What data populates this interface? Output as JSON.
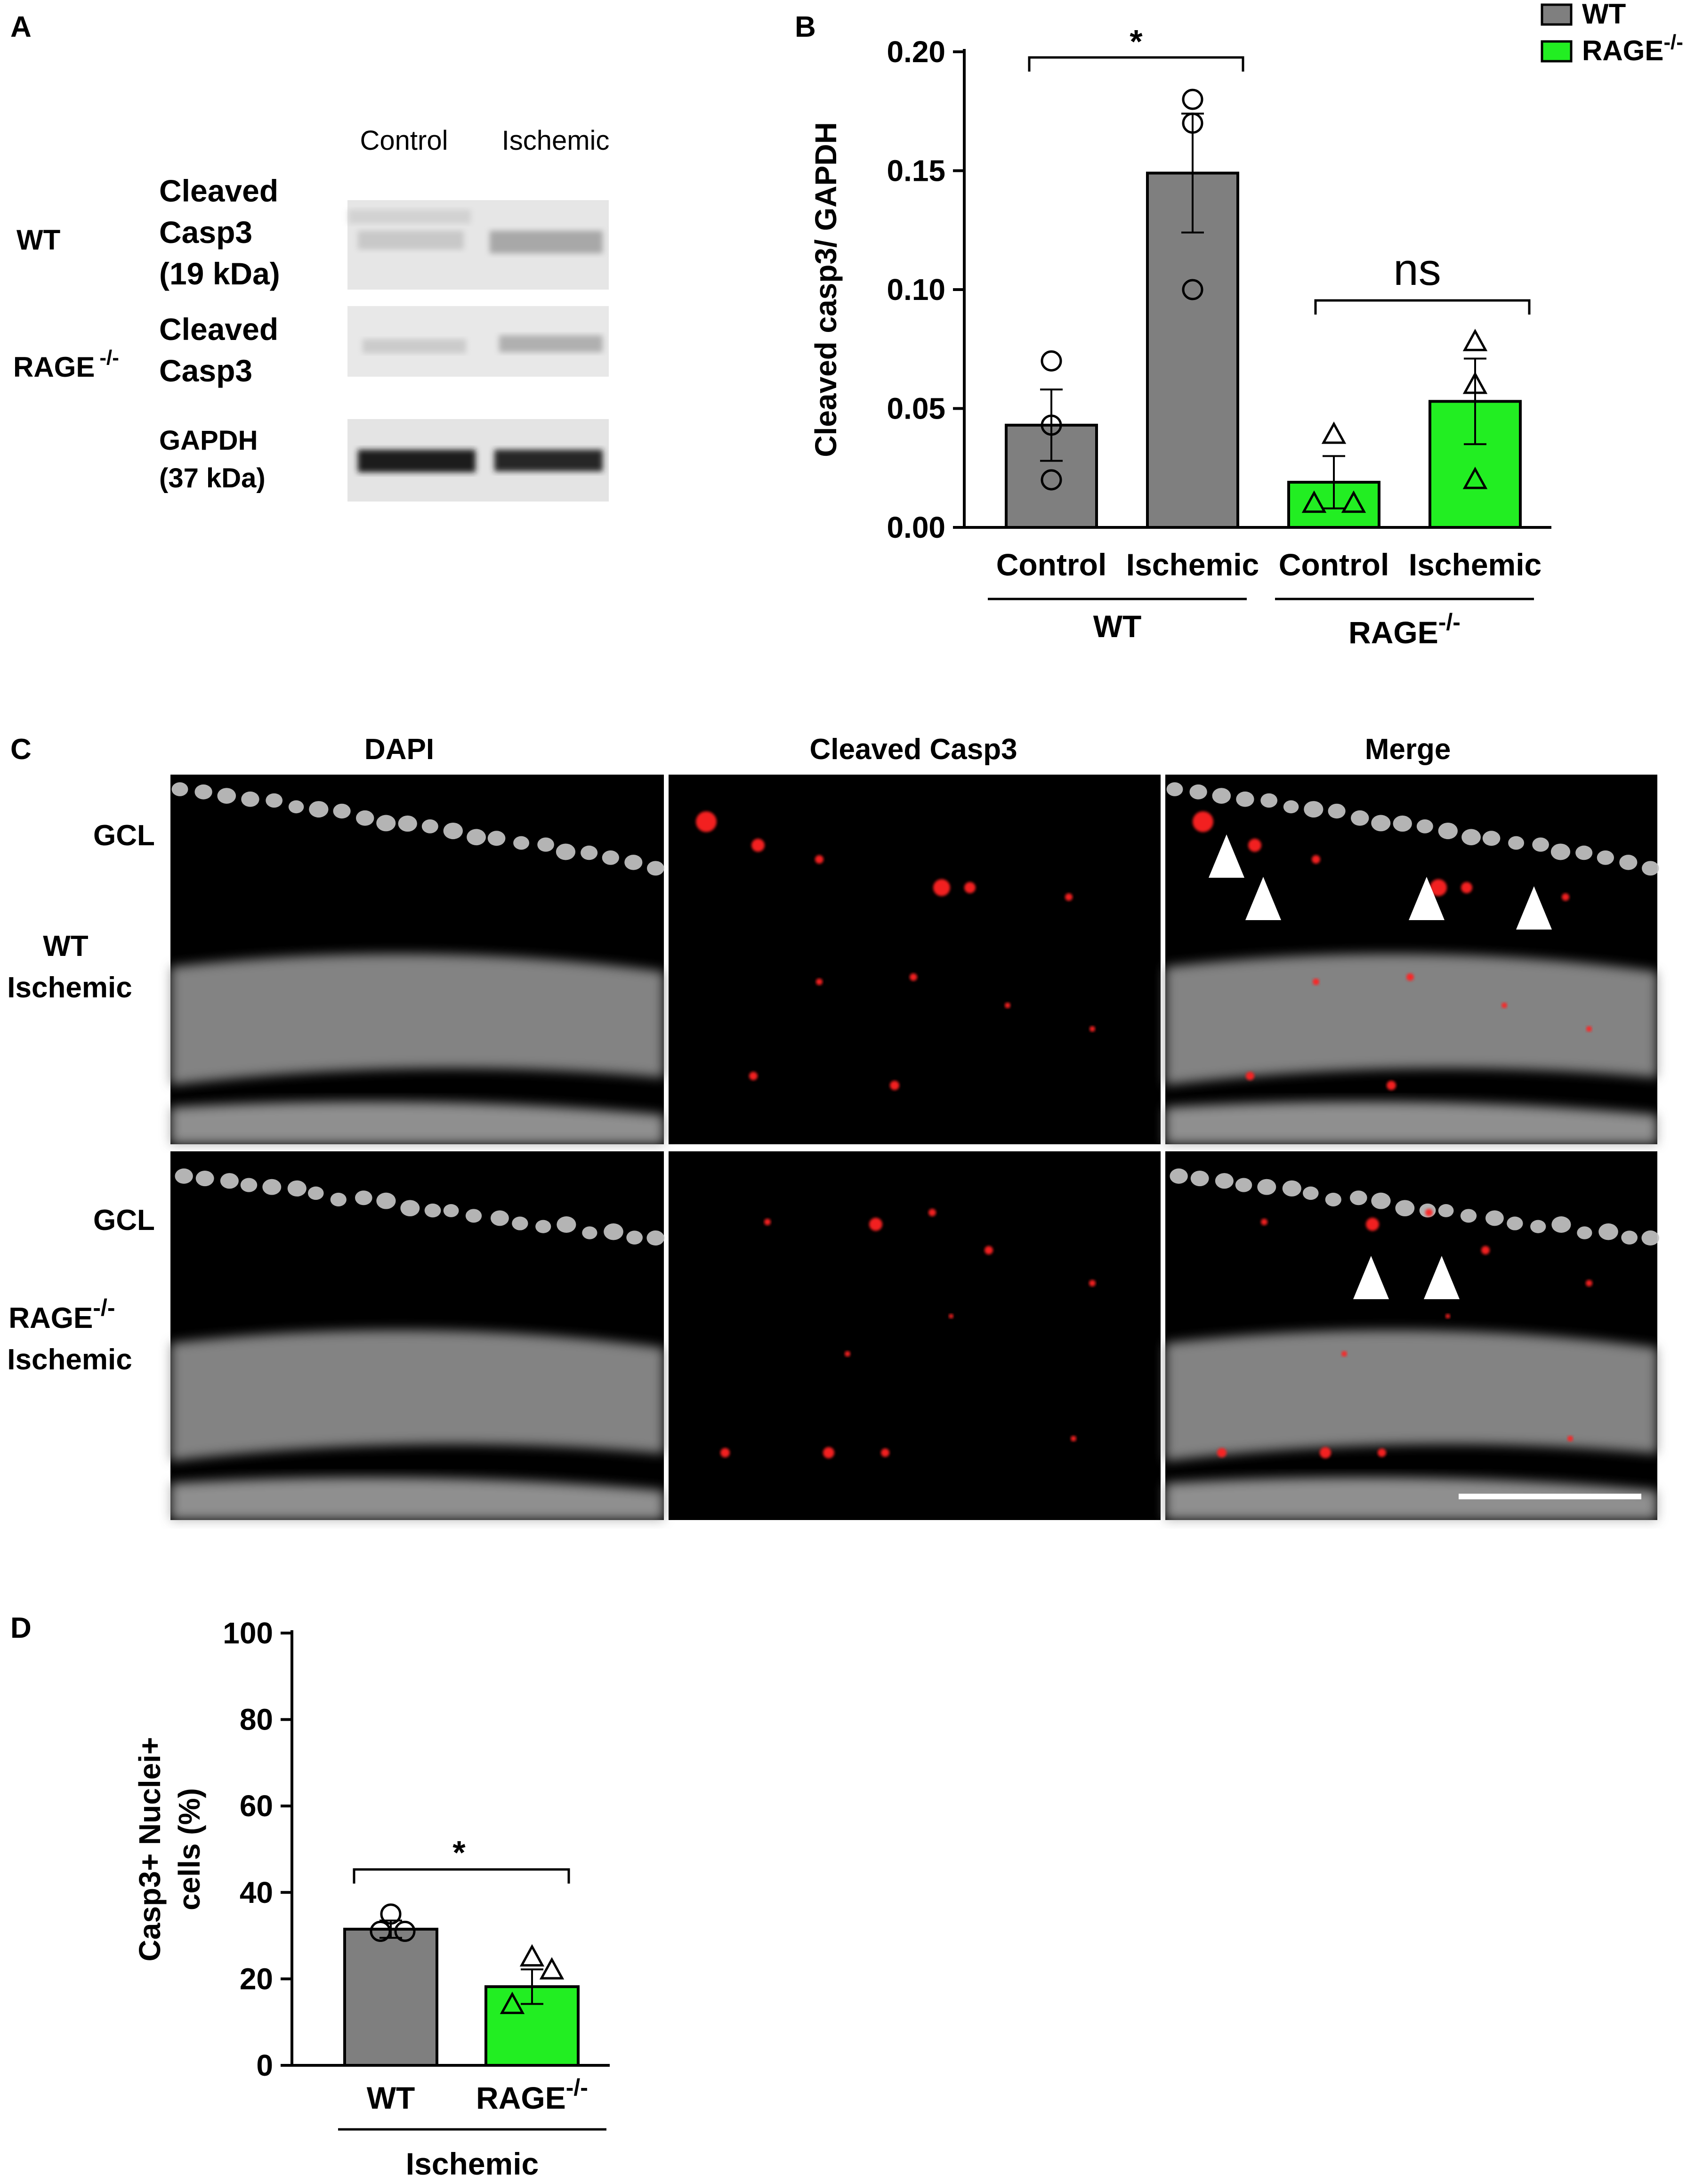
{
  "panel_letters": {
    "a": "A",
    "b": "B",
    "c": "C",
    "d": "D"
  },
  "colors": {
    "wt": "#7f7f7f",
    "rage": "#22ee22",
    "signal": "#ff2020",
    "axis": "#000000"
  },
  "panel_a": {
    "col_control": "Control",
    "col_ischemic": "Ischemic",
    "row_wt": "WT",
    "row_rage": "RAGE",
    "row_rage_sup": "-/-",
    "blot1_label_lines": [
      "Cleaved",
      "Casp3",
      "(19 kDa)"
    ],
    "blot2_label_lines": [
      "Cleaved",
      "Casp3"
    ],
    "blot3_label_lines": [
      "GAPDH",
      "(37 kDa)"
    ]
  },
  "panel_b": {
    "legend": [
      {
        "label": "WT",
        "sup": "",
        "color": "#7f7f7f"
      },
      {
        "label": "RAGE",
        "sup": "-/-",
        "color": "#22ee22"
      }
    ],
    "group_wt": "WT",
    "group_rage": "RAGE",
    "group_rage_sup": "-/-",
    "sig1": "*",
    "sig2": "ns"
  },
  "panel_c": {
    "col_headers": [
      "DAPI",
      "Cleaved Casp3",
      "Merge"
    ],
    "row1_label_lines": [
      "WT",
      "Ischemic"
    ],
    "row2_label_lines": [
      "RAGE",
      "Ischemic"
    ],
    "row2_label_sup": "-/-",
    "gcl": "GCL"
  },
  "panel_d": {
    "group_label": "Ischemic",
    "sig": "*",
    "rage_sup": "-/-"
  },
  "chart_data": [
    {
      "id": "B",
      "type": "bar",
      "ylabel": "Cleaved casp3/ GAPDH",
      "ylim": [
        0,
        0.2
      ],
      "yticks": [
        "0.00",
        "0.05",
        "0.10",
        "0.15",
        "0.20"
      ],
      "ytick_values": [
        0,
        0.05,
        0.1,
        0.15,
        0.2
      ],
      "categories": [
        "Control",
        "Ischemic",
        "Control",
        "Ischemic"
      ],
      "groups": [
        "WT",
        "WT",
        "RAGE-/-",
        "RAGE-/-"
      ],
      "values": [
        0.043,
        0.149,
        0.019,
        0.053
      ],
      "sem": [
        0.015,
        0.025,
        0.011,
        0.018
      ],
      "points": [
        [
          0.07,
          0.043,
          0.02
        ],
        [
          0.18,
          0.17,
          0.1
        ],
        [
          0.039,
          0.01,
          0.01
        ],
        [
          0.078,
          0.06,
          0.02
        ]
      ],
      "markers": [
        "circle",
        "circle",
        "triangle",
        "triangle"
      ],
      "bar_colors": [
        "#7f7f7f",
        "#7f7f7f",
        "#22ee22",
        "#22ee22"
      ]
    },
    {
      "id": "D",
      "type": "bar",
      "ylabel_lines": [
        "Casp3+ Nuclei+",
        "cells (%)"
      ],
      "ylim": [
        0,
        100
      ],
      "yticks": [
        "0",
        "20",
        "40",
        "60",
        "80",
        "100"
      ],
      "ytick_values": [
        0,
        20,
        40,
        60,
        80,
        100
      ],
      "categories": [
        "WT",
        "RAGE"
      ],
      "values": [
        31.5,
        18.2
      ],
      "sem": [
        2.0,
        4.0
      ],
      "points": [
        [
          35,
          31,
          31
        ],
        [
          25,
          14,
          22
        ]
      ],
      "markers": [
        "circle",
        "triangle"
      ],
      "bar_colors": [
        "#7f7f7f",
        "#22ee22"
      ]
    }
  ]
}
